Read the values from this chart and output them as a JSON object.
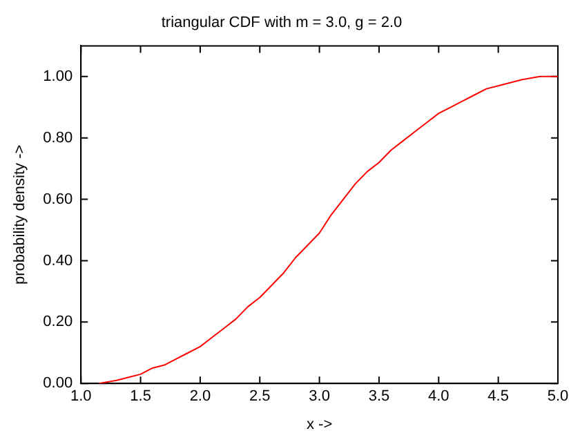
{
  "chart_data": {
    "type": "line",
    "title": "triangular CDF with m = 3.0, g = 2.0",
    "xlabel": "x ->",
    "ylabel": "probability density ->",
    "series": [
      {
        "color": "#ff0000",
        "x": [
          1.15,
          1.3,
          1.4,
          1.5,
          1.6,
          1.7,
          1.8,
          1.9,
          2.0,
          2.1,
          2.2,
          2.3,
          2.4,
          2.5,
          2.6,
          2.7,
          2.8,
          2.9,
          3.0,
          3.1,
          3.2,
          3.3,
          3.4,
          3.5,
          3.6,
          3.7,
          3.8,
          3.9,
          4.0,
          4.1,
          4.2,
          4.3,
          4.4,
          4.5,
          4.6,
          4.7,
          4.85,
          5.0
        ],
        "values": [
          0.0,
          0.01,
          0.02,
          0.03,
          0.05,
          0.06,
          0.08,
          0.1,
          0.12,
          0.15,
          0.18,
          0.21,
          0.25,
          0.28,
          0.32,
          0.36,
          0.41,
          0.45,
          0.49,
          0.55,
          0.6,
          0.65,
          0.69,
          0.72,
          0.76,
          0.79,
          0.82,
          0.85,
          0.88,
          0.9,
          0.92,
          0.94,
          0.96,
          0.97,
          0.98,
          0.99,
          1.0,
          1.0
        ]
      }
    ],
    "xlim": [
      1.0,
      5.0
    ],
    "ylim": [
      0,
      1.1
    ],
    "xticks": [
      {
        "value": 1,
        "label": "1.0"
      },
      {
        "value": 1.5,
        "label": "1.5"
      },
      {
        "value": 2,
        "label": "2.0"
      },
      {
        "value": 2.5,
        "label": "2.5"
      },
      {
        "value": 3,
        "label": "3.0"
      },
      {
        "value": 3.5,
        "label": "3.5"
      },
      {
        "value": 4,
        "label": "4.0"
      },
      {
        "value": 4.5,
        "label": "4.5"
      },
      {
        "value": 5,
        "label": "5.0"
      }
    ],
    "yticks": [
      {
        "value": 0,
        "label": "0.00"
      },
      {
        "value": 0.2,
        "label": "0.20"
      },
      {
        "value": 0.4,
        "label": "0.40"
      },
      {
        "value": 0.6,
        "label": "0.60"
      },
      {
        "value": 0.8,
        "label": "0.80"
      },
      {
        "value": 1,
        "label": "1.00"
      }
    ],
    "grid": false,
    "legend": false,
    "marker": "none",
    "line_style": "solid"
  }
}
